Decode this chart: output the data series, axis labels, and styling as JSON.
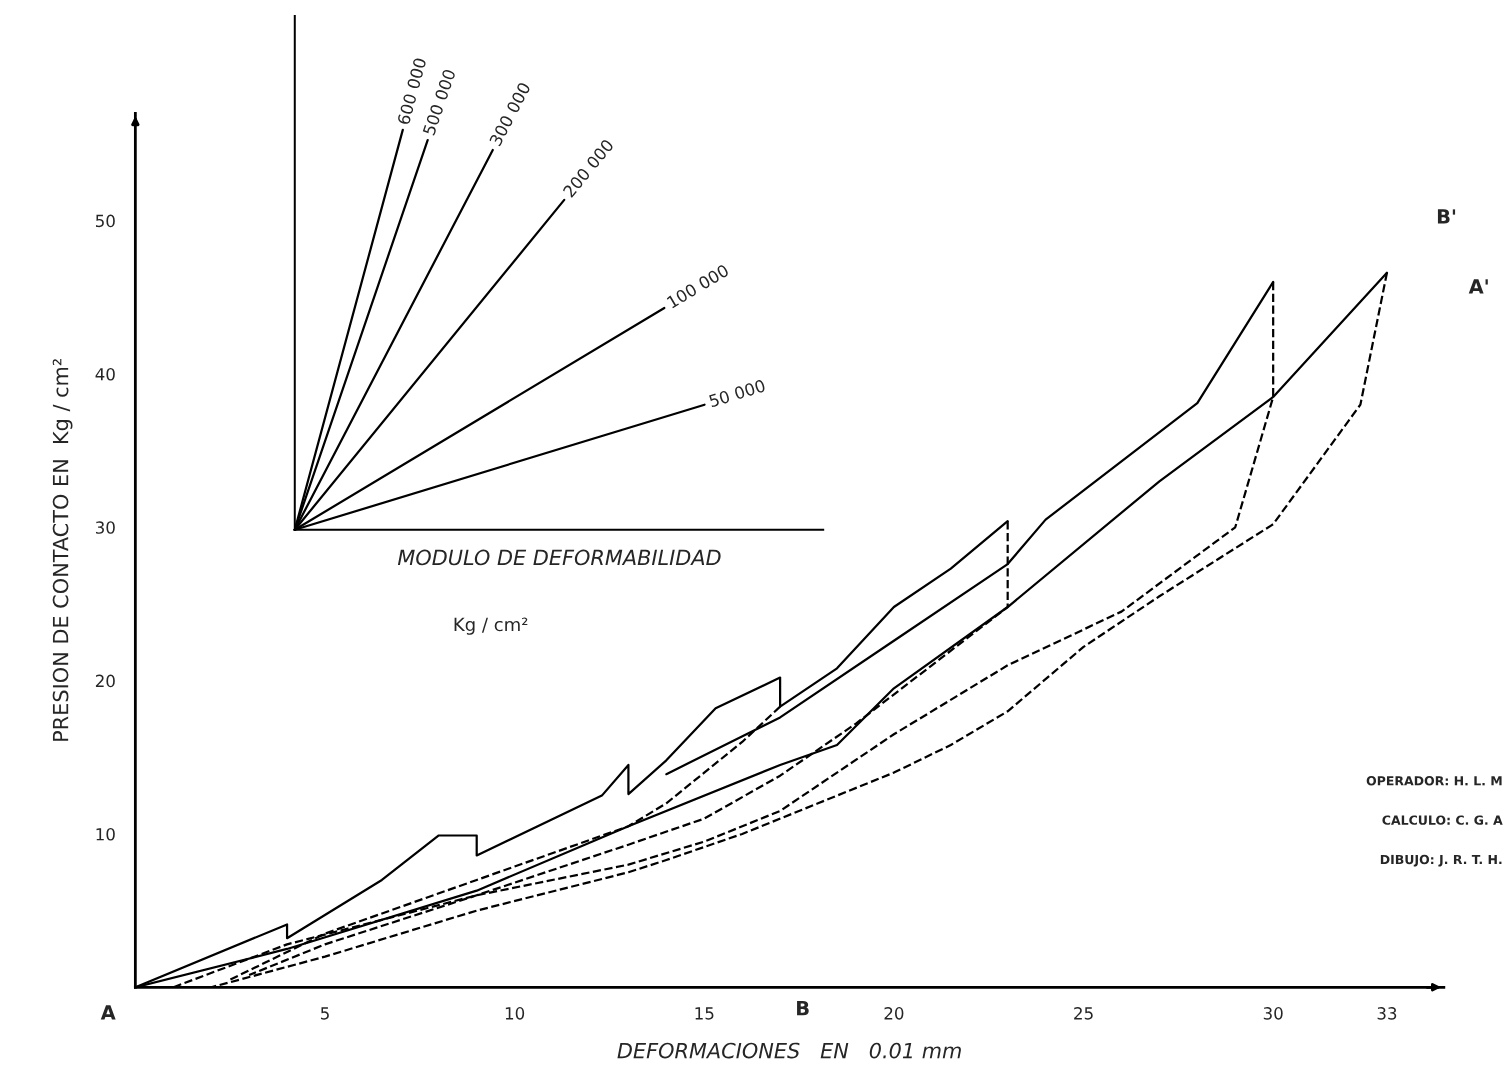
{
  "chart_data": [
    {
      "type": "line",
      "xlabel": "DEFORMACIONES   EN   0.01 mm",
      "ylabel": "PRESION DE CONTACTO EN  Kg / cm²",
      "xlim": [
        0,
        34.5
      ],
      "xticks": [
        5,
        10,
        15,
        20,
        25,
        30,
        33
      ],
      "ylim": [
        0,
        57
      ],
      "yticks": [
        10,
        20,
        30,
        40,
        50
      ],
      "grid": false,
      "legend": false,
      "marker": "none",
      "series": [
        {
          "color": "#000000",
          "line_style": "solid",
          "x": [
            0,
            4,
            4,
            6.5,
            8,
            9,
            9,
            12.3,
            13,
            13,
            14,
            15.3,
            17,
            17,
            18.5,
            20,
            21.5,
            23
          ],
          "values": [
            0,
            4.1,
            3.2,
            7,
            9.9,
            9.9,
            8.6,
            12.5,
            14.5,
            12.6,
            14.8,
            18.2,
            20.2,
            18.3,
            20.8,
            24.8,
            27.3,
            30.4
          ]
        },
        {
          "color": "#000000",
          "line_style": "solid",
          "x": [
            14,
            17,
            20,
            23,
            24,
            28,
            30
          ],
          "values": [
            13.9,
            17.6,
            22.6,
            27.6,
            30.5,
            38.1,
            46
          ]
        },
        {
          "color": "#000000",
          "line_style": "solid",
          "x": [
            0,
            4,
            9,
            13,
            17,
            18.5,
            20,
            23,
            27,
            30,
            33
          ],
          "values": [
            0,
            2.5,
            6.3,
            10.5,
            14.5,
            15.8,
            19.5,
            24.8,
            33,
            38.5,
            46.6
          ]
        },
        {
          "color": "#000000",
          "line_style": "dashed",
          "x": [
            33,
            32.3,
            30,
            27,
            25,
            23,
            21.5,
            20,
            18,
            16,
            14,
            13,
            9,
            5,
            2
          ],
          "values": [
            46.6,
            38,
            30.2,
            25.5,
            22.2,
            18,
            15.8,
            14,
            12,
            10,
            8.3,
            7.5,
            5,
            2,
            0
          ]
        },
        {
          "color": "#000000",
          "line_style": "dashed",
          "x": [
            30,
            30,
            29,
            26,
            23,
            20,
            17,
            15,
            13,
            9,
            4,
            1
          ],
          "values": [
            46,
            38.5,
            30,
            24.5,
            21,
            16.5,
            11.5,
            9.5,
            8,
            6,
            2.8,
            0
          ]
        },
        {
          "color": "#000000",
          "line_style": "dashed",
          "x": [
            23,
            23,
            21,
            19,
            17,
            15,
            13,
            9,
            5,
            3
          ],
          "values": [
            30.4,
            24.8,
            21,
            17.2,
            13.8,
            11,
            9.3,
            6,
            2.8,
            0.8
          ]
        },
        {
          "color": "#000000",
          "line_style": "dashed",
          "x": [
            17,
            16,
            15,
            14,
            13,
            9,
            5,
            2.5
          ],
          "values": [
            18.3,
            16,
            14,
            12,
            10.5,
            7,
            3.5,
            0.5
          ]
        }
      ],
      "annotations": [
        "A",
        "B",
        "A'",
        "B'",
        "OPERADOR: H. L. M",
        "CALCULO: C. G. A",
        "DIBUJO: J. R. T. H."
      ]
    },
    {
      "type": "other",
      "xlabel": "MODULO DE DEFORMABILIDAD",
      "annotations": [
        "600 000",
        "500 000",
        "300 000",
        "200 000",
        "100 000",
        "50 000",
        "Kg / cm²"
      ]
    }
  ]
}
